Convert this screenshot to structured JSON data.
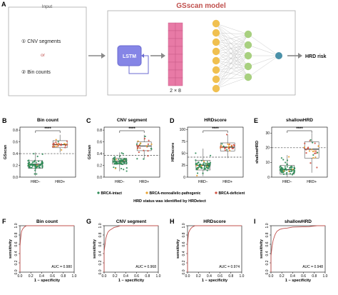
{
  "panel_a": {
    "letter": "A",
    "input_label": "Input",
    "option1": "① CNV segments",
    "or_label": "or",
    "option2": "② Bin counts",
    "model_title": "GSscan model",
    "lstm_label": "LSTM",
    "matrix_label": "2 × 8",
    "output_label": "HRD risk",
    "colors": {
      "title": "#c0504d",
      "lstm": "#8080e0",
      "matrix": "#e87aa6",
      "node_yellow": "#f0c050",
      "node_green": "#a8d080",
      "node_blue": "#4a90a8"
    }
  },
  "box_panels": [
    {
      "letter": "B",
      "title": "Bin count",
      "ylabel": "GSscan",
      "yticks": [
        "0.8",
        "0.6",
        "0.4",
        "0.2",
        "0.0"
      ],
      "ylim": [
        0,
        0.85
      ],
      "threshold": 0.4,
      "sig": "****",
      "groups": [
        {
          "label": "HRD−",
          "q1": 0.15,
          "median": 0.22,
          "q3": 0.28,
          "wlo": 0.02,
          "whi": 0.42
        },
        {
          "label": "HRD+",
          "q1": 0.5,
          "median": 0.55,
          "q3": 0.62,
          "wlo": 0.42,
          "whi": 0.72
        }
      ]
    },
    {
      "letter": "C",
      "title": "CNV segment",
      "ylabel": "GSscan",
      "yticks": [
        "0.8",
        "0.6",
        "0.4",
        "0.2",
        "0.0"
      ],
      "ylim": [
        0,
        0.85
      ],
      "threshold": 0.37,
      "sig": "****",
      "groups": [
        {
          "label": "HRD−",
          "q1": 0.22,
          "median": 0.27,
          "q3": 0.32,
          "wlo": 0.1,
          "whi": 0.42
        },
        {
          "label": "HRD+",
          "q1": 0.45,
          "median": 0.53,
          "q3": 0.6,
          "wlo": 0.3,
          "whi": 0.72
        }
      ]
    },
    {
      "letter": "D",
      "title": "HRDscore",
      "ylabel": "HRDscore",
      "yticks": [
        "100",
        "75",
        "50",
        "25",
        "0"
      ],
      "ylim": [
        0,
        105
      ],
      "threshold": 42,
      "sig": "****",
      "groups": [
        {
          "label": "HRD−",
          "q1": 15,
          "median": 25,
          "q3": 35,
          "wlo": 2,
          "whi": 60
        },
        {
          "label": "HRD+",
          "q1": 55,
          "median": 63,
          "q3": 72,
          "wlo": 40,
          "whi": 90
        }
      ]
    },
    {
      "letter": "E",
      "title": "shallowHRD",
      "ylabel": "shallowHRD",
      "yticks": [
        "30",
        "20",
        "10",
        "0"
      ],
      "ylim": [
        0,
        34
      ],
      "threshold": 20,
      "sig": "****",
      "groups": [
        {
          "label": "HRD−",
          "q1": 2,
          "median": 5,
          "q3": 8,
          "wlo": 0,
          "whi": 15
        },
        {
          "label": "HRD+",
          "q1": 13,
          "median": 19,
          "q3": 24,
          "wlo": 3,
          "whi": 30
        }
      ]
    }
  ],
  "legend": {
    "items": [
      {
        "label": "BRCA-intact",
        "color": "#2e8b57"
      },
      {
        "label": "BRCA-monoallelic-pathogenic",
        "color": "#e8a030"
      },
      {
        "label": "BRCA-deficient",
        "color": "#d05040"
      }
    ],
    "caption": "HRD status  was identified by HRDetect"
  },
  "roc_panels": [
    {
      "letter": "F",
      "title": "Bin count",
      "auc": "AUC = 0.980"
    },
    {
      "letter": "G",
      "title": "CNV segment",
      "auc": "AUC = 0.968"
    },
    {
      "letter": "H",
      "title": "HRDscore",
      "auc": "AUC = 0.974"
    },
    {
      "letter": "I",
      "title": "shallowHRD",
      "auc": "AUC = 0.948"
    }
  ],
  "roc_axes": {
    "xlabel": "1 − specificity",
    "ylabel": "sensitivity",
    "ticks": [
      "0.0",
      "0.2",
      "0.4",
      "0.6",
      "0.8",
      "1.0"
    ]
  }
}
